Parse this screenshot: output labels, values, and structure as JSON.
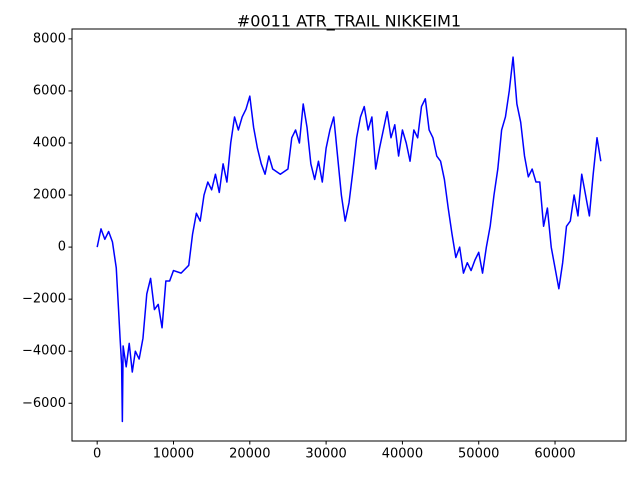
{
  "chart_data": {
    "type": "line",
    "title": "#0011 ATR_TRAIL NIKKEIM1",
    "x": [
      0,
      500,
      1000,
      1500,
      2000,
      2500,
      2800,
      3000,
      3200,
      3300,
      3400,
      3800,
      4200,
      4600,
      5000,
      5500,
      6000,
      6500,
      7000,
      7500,
      8000,
      8500,
      9000,
      9500,
      10000,
      11000,
      12000,
      12500,
      13000,
      13500,
      14000,
      14500,
      15000,
      15500,
      16000,
      16500,
      17000,
      17500,
      18000,
      18500,
      19000,
      19500,
      20000,
      20500,
      21000,
      21500,
      22000,
      22500,
      23000,
      24000,
      25000,
      25500,
      26000,
      26500,
      27000,
      27500,
      28000,
      28500,
      29000,
      29500,
      30000,
      30500,
      31000,
      31500,
      32000,
      32500,
      33000,
      33500,
      34000,
      34500,
      35000,
      35500,
      36000,
      36500,
      37000,
      37500,
      38000,
      38500,
      39000,
      39500,
      40000,
      40500,
      41000,
      41500,
      42000,
      42500,
      43000,
      43500,
      44000,
      44500,
      45000,
      45500,
      46000,
      46500,
      47000,
      47500,
      48000,
      48500,
      49000,
      49500,
      50000,
      50500,
      51000,
      51500,
      52000,
      52500,
      53000,
      53500,
      54000,
      54500,
      55000,
      55500,
      56000,
      56500,
      57000,
      57500,
      58000,
      58500,
      59000,
      59500,
      60000,
      60500,
      61000,
      61500,
      62000,
      62500,
      63000,
      63500,
      64000,
      64500,
      65000,
      65500,
      66000
    ],
    "series": [
      {
        "color": "#0000ff",
        "values": [
          0,
          700,
          300,
          600,
          200,
          -800,
          -2400,
          -3500,
          -4500,
          -6700,
          -3800,
          -4600,
          -3700,
          -4800,
          -4000,
          -4300,
          -3500,
          -1800,
          -1200,
          -2400,
          -2200,
          -3100,
          -1300,
          -1300,
          -900,
          -1000,
          -700,
          500,
          1300,
          1000,
          2000,
          2500,
          2200,
          2800,
          2100,
          3200,
          2500,
          4000,
          5000,
          4500,
          5000,
          5300,
          5800,
          4600,
          3800,
          3200,
          2800,
          3500,
          3000,
          2800,
          3000,
          4200,
          4500,
          4000,
          5500,
          4600,
          3200,
          2600,
          3300,
          2500,
          3800,
          4500,
          5000,
          3500,
          2000,
          1000,
          1700,
          2900,
          4200,
          5000,
          5400,
          4500,
          5000,
          3000,
          3800,
          4500,
          5200,
          4200,
          4700,
          3500,
          4500,
          4000,
          3300,
          4500,
          4200,
          5400,
          5700,
          4500,
          4200,
          3500,
          3300,
          2600,
          1500,
          500,
          -400,
          0,
          -1000,
          -600,
          -900,
          -500,
          -200,
          -1000,
          0,
          800,
          2000,
          3000,
          4500,
          5000,
          6000,
          7300,
          5500,
          4800,
          3500,
          2700,
          3000,
          2500,
          2500,
          800,
          1500,
          0,
          -800,
          -1600,
          -600,
          800,
          1000,
          2000,
          1200,
          2800,
          2000,
          1200,
          2800,
          4200,
          3300
        ]
      }
    ],
    "xlim": [
      -3300,
      69300
    ],
    "ylim": [
      -7450,
      8380
    ],
    "xticks": [
      0,
      10000,
      20000,
      30000,
      40000,
      50000,
      60000
    ],
    "yticks": [
      {
        "value": -6000,
        "label": "−6000"
      },
      {
        "value": -4000,
        "label": "−4000"
      },
      {
        "value": -2000,
        "label": "−2000"
      },
      0,
      2000,
      4000,
      6000,
      8000
    ]
  }
}
